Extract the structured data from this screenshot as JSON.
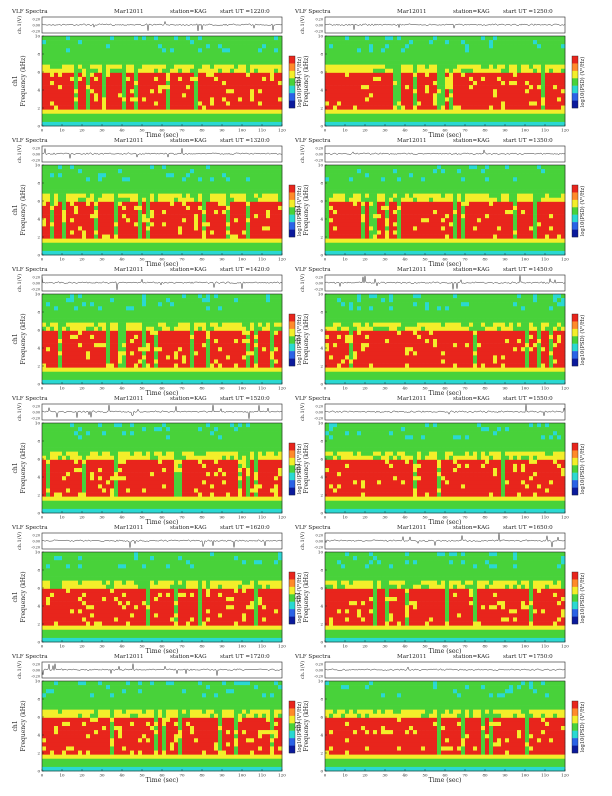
{
  "colors": {
    "spec_high": "#e8251c",
    "spec_mid": "#f3ee2a",
    "spec_low": "#48d23a",
    "spec_floor": "#2ad8d2",
    "trace": "#333333"
  },
  "chart_data": [
    {
      "type": "heatmap",
      "header": {
        "title": "VLF Spectra",
        "date": "Mar12011",
        "station": "station=KAG",
        "start": "start  UT  =1220:0"
      },
      "trace_ylabel": "ch.1(V)",
      "trace_ticks": [
        "0.20",
        "0.00",
        "-0.20"
      ],
      "ylabel": "ch1\nFrequency (kHz)",
      "yticks": [
        "0",
        "2",
        "4",
        "6",
        "8",
        "10"
      ],
      "xlabel": "Time (sec)",
      "xticks": [
        "0",
        "10",
        "20",
        "30",
        "40",
        "50",
        "60",
        "70",
        "80",
        "90",
        "100",
        "110",
        "120"
      ],
      "xlim": [
        0,
        120
      ],
      "ylim": [
        0,
        10
      ],
      "colorbar_label": "log10(PSD) (V²/Hz)"
    },
    {
      "type": "heatmap",
      "header": {
        "title": "VLF Spectra",
        "date": "Mar12011",
        "station": "station=KAG",
        "start": "start  UT  =1250:0"
      },
      "trace_ylabel": "ch.1(V)",
      "trace_ticks": [
        "0.20",
        "0.00",
        "-0.20"
      ],
      "ylabel": "ch1\nFrequency (kHz)",
      "yticks": [
        "0",
        "2",
        "4",
        "6",
        "8",
        "10"
      ],
      "xlabel": "Time (sec)",
      "xticks": [
        "0",
        "10",
        "20",
        "30",
        "40",
        "50",
        "60",
        "70",
        "80",
        "90",
        "100",
        "110",
        "120"
      ],
      "xlim": [
        0,
        120
      ],
      "ylim": [
        0,
        10
      ],
      "colorbar_label": "log10(PSD) (V²/Hz)"
    },
    {
      "type": "heatmap",
      "header": {
        "title": "VLF Spectra",
        "date": "Mar12011",
        "station": "station=KAG",
        "start": "start  UT  =1320:0"
      },
      "trace_ylabel": "ch.1(V)",
      "trace_ticks": [
        "0.20",
        "0.00",
        "-0.20"
      ],
      "ylabel": "ch1\nFrequency (kHz)",
      "yticks": [
        "0",
        "2",
        "4",
        "6",
        "8",
        "10"
      ],
      "xlabel": "Time (sec)",
      "xticks": [
        "0",
        "10",
        "20",
        "30",
        "40",
        "50",
        "60",
        "70",
        "80",
        "90",
        "100",
        "110",
        "120"
      ],
      "xlim": [
        0,
        120
      ],
      "ylim": [
        0,
        10
      ],
      "colorbar_label": "log10(PSD) (V²/Hz)"
    },
    {
      "type": "heatmap",
      "header": {
        "title": "VLF Spectra",
        "date": "Mar12011",
        "station": "station=KAG",
        "start": "start  UT  =1350:0"
      },
      "trace_ylabel": "ch.1(V)",
      "trace_ticks": [
        "0.20",
        "0.00",
        "-0.20"
      ],
      "ylabel": "ch1\nFrequency (kHz)",
      "yticks": [
        "0",
        "2",
        "4",
        "6",
        "8",
        "10"
      ],
      "xlabel": "Time (sec)",
      "xticks": [
        "0",
        "10",
        "20",
        "30",
        "40",
        "50",
        "60",
        "70",
        "80",
        "90",
        "100",
        "110",
        "120"
      ],
      "xlim": [
        0,
        120
      ],
      "ylim": [
        0,
        10
      ],
      "colorbar_label": "log10(PSD) (V²/Hz)"
    },
    {
      "type": "heatmap",
      "header": {
        "title": "VLF Spectra",
        "date": "Mar12011",
        "station": "station=KAG",
        "start": "start  UT  =1420:0"
      },
      "trace_ylabel": "ch.1(V)",
      "trace_ticks": [
        "0.20",
        "0.00",
        "-0.20"
      ],
      "ylabel": "ch1\nFrequency (kHz)",
      "yticks": [
        "0",
        "2",
        "4",
        "6",
        "8",
        "10"
      ],
      "xlabel": "Time (sec)",
      "xticks": [
        "0",
        "10",
        "20",
        "30",
        "40",
        "50",
        "60",
        "70",
        "80",
        "90",
        "100",
        "110",
        "120"
      ],
      "xlim": [
        0,
        120
      ],
      "ylim": [
        0,
        10
      ],
      "colorbar_label": "log10(PSD) (V²/Hz)"
    },
    {
      "type": "heatmap",
      "header": {
        "title": "VLF Spectra",
        "date": "Mar12011",
        "station": "station=KAG",
        "start": "start  UT  =1450:0"
      },
      "trace_ylabel": "ch.1(V)",
      "trace_ticks": [
        "0.20",
        "0.00",
        "-0.20"
      ],
      "ylabel": "ch1\nFrequency (kHz)",
      "yticks": [
        "0",
        "2",
        "4",
        "6",
        "8",
        "10"
      ],
      "xlabel": "Time (sec)",
      "xticks": [
        "0",
        "10",
        "20",
        "30",
        "40",
        "50",
        "60",
        "70",
        "80",
        "90",
        "100",
        "110",
        "120"
      ],
      "xlim": [
        0,
        120
      ],
      "ylim": [
        0,
        10
      ],
      "colorbar_label": "log10(PSD) (V²/Hz)"
    },
    {
      "type": "heatmap",
      "header": {
        "title": "VLF Spectra",
        "date": "Mar12011",
        "station": "station=KAG",
        "start": "start  UT  =1520:0"
      },
      "trace_ylabel": "ch.1(V)",
      "trace_ticks": [
        "0.20",
        "0.00",
        "-0.20"
      ],
      "ylabel": "ch1\nFrequency (kHz)",
      "yticks": [
        "0",
        "2",
        "4",
        "6",
        "8",
        "10"
      ],
      "xlabel": "Time (sec)",
      "xticks": [
        "0",
        "10",
        "20",
        "30",
        "40",
        "50",
        "60",
        "70",
        "80",
        "90",
        "100",
        "110",
        "120"
      ],
      "xlim": [
        0,
        120
      ],
      "ylim": [
        0,
        10
      ],
      "colorbar_label": "log10(PSD) (V²/Hz)"
    },
    {
      "type": "heatmap",
      "header": {
        "title": "VLF Spectra",
        "date": "Mar12011",
        "station": "station=KAG",
        "start": "start  UT  =1550:0"
      },
      "trace_ylabel": "ch.1(V)",
      "trace_ticks": [
        "0.20",
        "0.00",
        "-0.20"
      ],
      "ylabel": "ch1\nFrequency (kHz)",
      "yticks": [
        "0",
        "2",
        "4",
        "6",
        "8",
        "10"
      ],
      "xlabel": "Time (sec)",
      "xticks": [
        "0",
        "10",
        "20",
        "30",
        "40",
        "50",
        "60",
        "70",
        "80",
        "90",
        "100",
        "110",
        "120"
      ],
      "xlim": [
        0,
        120
      ],
      "ylim": [
        0,
        10
      ],
      "colorbar_label": "log10(PSD) (V²/Hz)"
    },
    {
      "type": "heatmap",
      "header": {
        "title": "VLF Spectra",
        "date": "Mar12011",
        "station": "station=KAG",
        "start": "start  UT  =1620:0"
      },
      "trace_ylabel": "ch.1(V)",
      "trace_ticks": [
        "0.20",
        "0.00",
        "-0.20"
      ],
      "ylabel": "ch1\nFrequency (kHz)",
      "yticks": [
        "0",
        "2",
        "4",
        "6",
        "8",
        "10"
      ],
      "xlabel": "Time (sec)",
      "xticks": [
        "0",
        "10",
        "20",
        "30",
        "40",
        "50",
        "60",
        "70",
        "80",
        "90",
        "100",
        "110",
        "120"
      ],
      "xlim": [
        0,
        120
      ],
      "ylim": [
        0,
        10
      ],
      "colorbar_label": "log10(PSD) (V²/Hz)"
    },
    {
      "type": "heatmap",
      "header": {
        "title": "VLF Spectra",
        "date": "Mar12011",
        "station": "station=KAG",
        "start": "start  UT  =1650:0"
      },
      "trace_ylabel": "ch.1(V)",
      "trace_ticks": [
        "0.20",
        "0.00",
        "-0.20"
      ],
      "ylabel": "ch1\nFrequency (kHz)",
      "yticks": [
        "0",
        "2",
        "4",
        "6",
        "8",
        "10"
      ],
      "xlabel": "Time (sec)",
      "xticks": [
        "0",
        "10",
        "20",
        "30",
        "40",
        "50",
        "60",
        "70",
        "80",
        "90",
        "100",
        "110",
        "120"
      ],
      "xlim": [
        0,
        120
      ],
      "ylim": [
        0,
        10
      ],
      "colorbar_label": "log10(PSD) (V²/Hz)"
    },
    {
      "type": "heatmap",
      "header": {
        "title": "VLF Spectra",
        "date": "Mar12011",
        "station": "station=KAG",
        "start": "start  UT  =1720:0"
      },
      "trace_ylabel": "ch.1(V)",
      "trace_ticks": [
        "0.20",
        "0.00",
        "-0.20"
      ],
      "ylabel": "ch1\nFrequency (kHz)",
      "yticks": [
        "0",
        "2",
        "4",
        "6",
        "8",
        "10"
      ],
      "xlabel": "Time (sec)",
      "xticks": [
        "0",
        "10",
        "20",
        "30",
        "40",
        "50",
        "60",
        "70",
        "80",
        "90",
        "100",
        "110",
        "120"
      ],
      "xlim": [
        0,
        120
      ],
      "ylim": [
        0,
        10
      ],
      "colorbar_label": "log10(PSD) (V²/Hz)"
    },
    {
      "type": "heatmap",
      "header": {
        "title": "VLF Spectra",
        "date": "Mar12011",
        "station": "station=KAG",
        "start": "start  UT  =1750:0"
      },
      "trace_ylabel": "ch.1(V)",
      "trace_ticks": [
        "0.20",
        "0.00",
        "-0.20"
      ],
      "ylabel": "ch1\nFrequency (kHz)",
      "yticks": [
        "0",
        "2",
        "4",
        "6",
        "8",
        "10"
      ],
      "xlabel": "Time (sec)",
      "xticks": [
        "0",
        "10",
        "20",
        "30",
        "40",
        "50",
        "60",
        "70",
        "80",
        "90",
        "100",
        "110",
        "120"
      ],
      "xlim": [
        0,
        120
      ],
      "ylim": [
        0,
        10
      ],
      "colorbar_label": "log10(PSD) (V²/Hz)"
    }
  ]
}
